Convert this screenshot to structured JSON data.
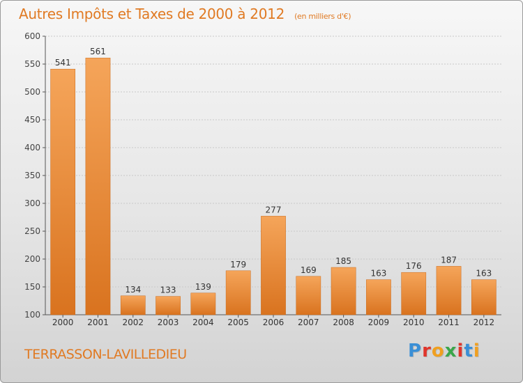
{
  "header": {
    "title": "Autres Impôts et Taxes de 2000 à 2012",
    "unit": "(en milliers d'€)"
  },
  "footer": {
    "commune": "TERRASSON-LAVILLEDIEU",
    "logo_text": "Proxiti",
    "logo_colors": [
      "#3a8fd6",
      "#e0352b",
      "#f0a020",
      "#3aa64a",
      "#e0352b",
      "#3a8fd6",
      "#f0a020"
    ]
  },
  "colors": {
    "bar_light": "#f5a55a",
    "bar_dark": "#d9731f",
    "accent": "#e07a23",
    "axis": "#555555",
    "grid": "#c8c8c8"
  },
  "chart_data": {
    "type": "bar",
    "title": "Autres Impôts et Taxes de 2000 à 2012",
    "subtitle": "(en milliers d'€)",
    "categories": [
      "2000",
      "2001",
      "2002",
      "2003",
      "2004",
      "2005",
      "2006",
      "2007",
      "2008",
      "2009",
      "2010",
      "2011",
      "2012"
    ],
    "values": [
      541,
      561,
      134,
      133,
      139,
      179,
      277,
      169,
      185,
      163,
      176,
      187,
      163
    ],
    "ylim": [
      100,
      600
    ],
    "yticks": [
      100,
      150,
      200,
      250,
      300,
      350,
      400,
      450,
      500,
      550,
      600
    ],
    "grid": true,
    "data_labels": true
  }
}
